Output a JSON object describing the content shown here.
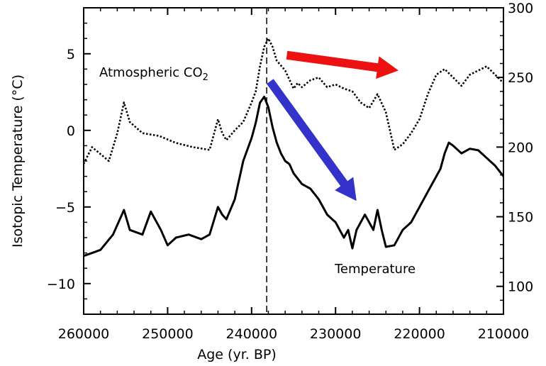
{
  "chart_data": {
    "type": "line",
    "xlabel": "Age (yr. BP)",
    "ylabel": "Isotopic Temperature (°C)",
    "xlim": [
      260000,
      210000
    ],
    "ylim": [
      -12,
      8
    ],
    "y2lim": [
      80,
      300
    ],
    "x_ticks": [
      "260000",
      "250000",
      "240000",
      "230000",
      "220000",
      "210000"
    ],
    "x_tick_values": [
      260000,
      250000,
      240000,
      230000,
      220000,
      210000
    ],
    "y_ticks": [
      "5",
      "0",
      "−5",
      "−10"
    ],
    "y_tick_values": [
      5,
      0,
      -5,
      -10
    ],
    "y2_ticks": [
      "300",
      "250",
      "200",
      "150",
      "100"
    ],
    "y2_tick_values": [
      300,
      250,
      200,
      150,
      100
    ],
    "vline_x": 238200,
    "series": [
      {
        "name": "Temperature",
        "axis": "left",
        "style": "solid",
        "color": "#000000",
        "x": [
          260000,
          258000,
          256500,
          255200,
          254500,
          253000,
          252000,
          250800,
          250000,
          249000,
          247500,
          246000,
          245000,
          244000,
          243500,
          243000,
          242000,
          241000,
          240000,
          239500,
          239000,
          238500,
          238000,
          237500,
          237000,
          236500,
          236000,
          235500,
          235000,
          234000,
          233000,
          232000,
          231000,
          230000,
          229000,
          228500,
          228000,
          227500,
          227000,
          226500,
          226000,
          225500,
          225000,
          224500,
          224000,
          223000,
          222000,
          221000,
          220000,
          219000,
          218000,
          217500,
          217000,
          216500,
          216000,
          215000,
          214000,
          213000,
          212000,
          211000,
          210000
        ],
        "values": [
          -8.2,
          -7.8,
          -6.8,
          -5.2,
          -6.5,
          -6.8,
          -5.3,
          -6.5,
          -7.5,
          -7.0,
          -6.8,
          -7.1,
          -6.8,
          -5.0,
          -5.5,
          -5.8,
          -4.5,
          -2.0,
          -0.5,
          0.5,
          1.8,
          2.2,
          1.5,
          0.2,
          -0.8,
          -1.5,
          -2.0,
          -2.2,
          -2.8,
          -3.5,
          -3.8,
          -4.5,
          -5.5,
          -6.0,
          -7.0,
          -6.5,
          -7.7,
          -6.5,
          -6.0,
          -5.5,
          -6.0,
          -6.5,
          -5.2,
          -6.5,
          -7.6,
          -7.5,
          -6.5,
          -6.0,
          -5.0,
          -4.0,
          -3.0,
          -2.5,
          -1.5,
          -0.8,
          -1.0,
          -1.5,
          -1.2,
          -1.3,
          -1.8,
          -2.3,
          -3.0
        ]
      },
      {
        "name": "Atmospheric CO2",
        "axis": "right",
        "style": "dotted",
        "color": "#000000",
        "x": [
          260000,
          259000,
          258000,
          257000,
          256000,
          255200,
          254500,
          253000,
          251000,
          249000,
          247000,
          245000,
          244000,
          243500,
          243000,
          242000,
          241000,
          240000,
          239500,
          239000,
          238500,
          238000,
          237500,
          237000,
          236000,
          235000,
          234500,
          234000,
          233000,
          232000,
          231000,
          230000,
          229000,
          228000,
          227000,
          226000,
          225000,
          224000,
          223000,
          222000,
          221000,
          220000,
          219000,
          218000,
          217000,
          216000,
          215000,
          214000,
          213000,
          212000,
          211000,
          210000
        ],
        "values": [
          188,
          200,
          195,
          190,
          210,
          232,
          218,
          210,
          208,
          203,
          200,
          198,
          220,
          210,
          205,
          212,
          218,
          232,
          240,
          258,
          272,
          278,
          272,
          262,
          255,
          242,
          246,
          243,
          248,
          250,
          243,
          245,
          242,
          240,
          232,
          228,
          238,
          225,
          198,
          202,
          210,
          220,
          238,
          252,
          256,
          250,
          244,
          252,
          255,
          258,
          252,
          246
        ]
      }
    ],
    "annotations": [
      {
        "kind": "arrow",
        "color": "#ee1111",
        "from": [
          235800,
          266
        ],
        "to": [
          222500,
          255
        ]
      },
      {
        "kind": "arrow",
        "color": "#3333cc",
        "from": [
          237800,
          3.2
        ],
        "to": [
          227500,
          -4.6
        ]
      }
    ]
  },
  "labels": {
    "co2_prefix": "Atmospheric CO",
    "co2_subscript": "2",
    "temperature": "Temperature"
  }
}
